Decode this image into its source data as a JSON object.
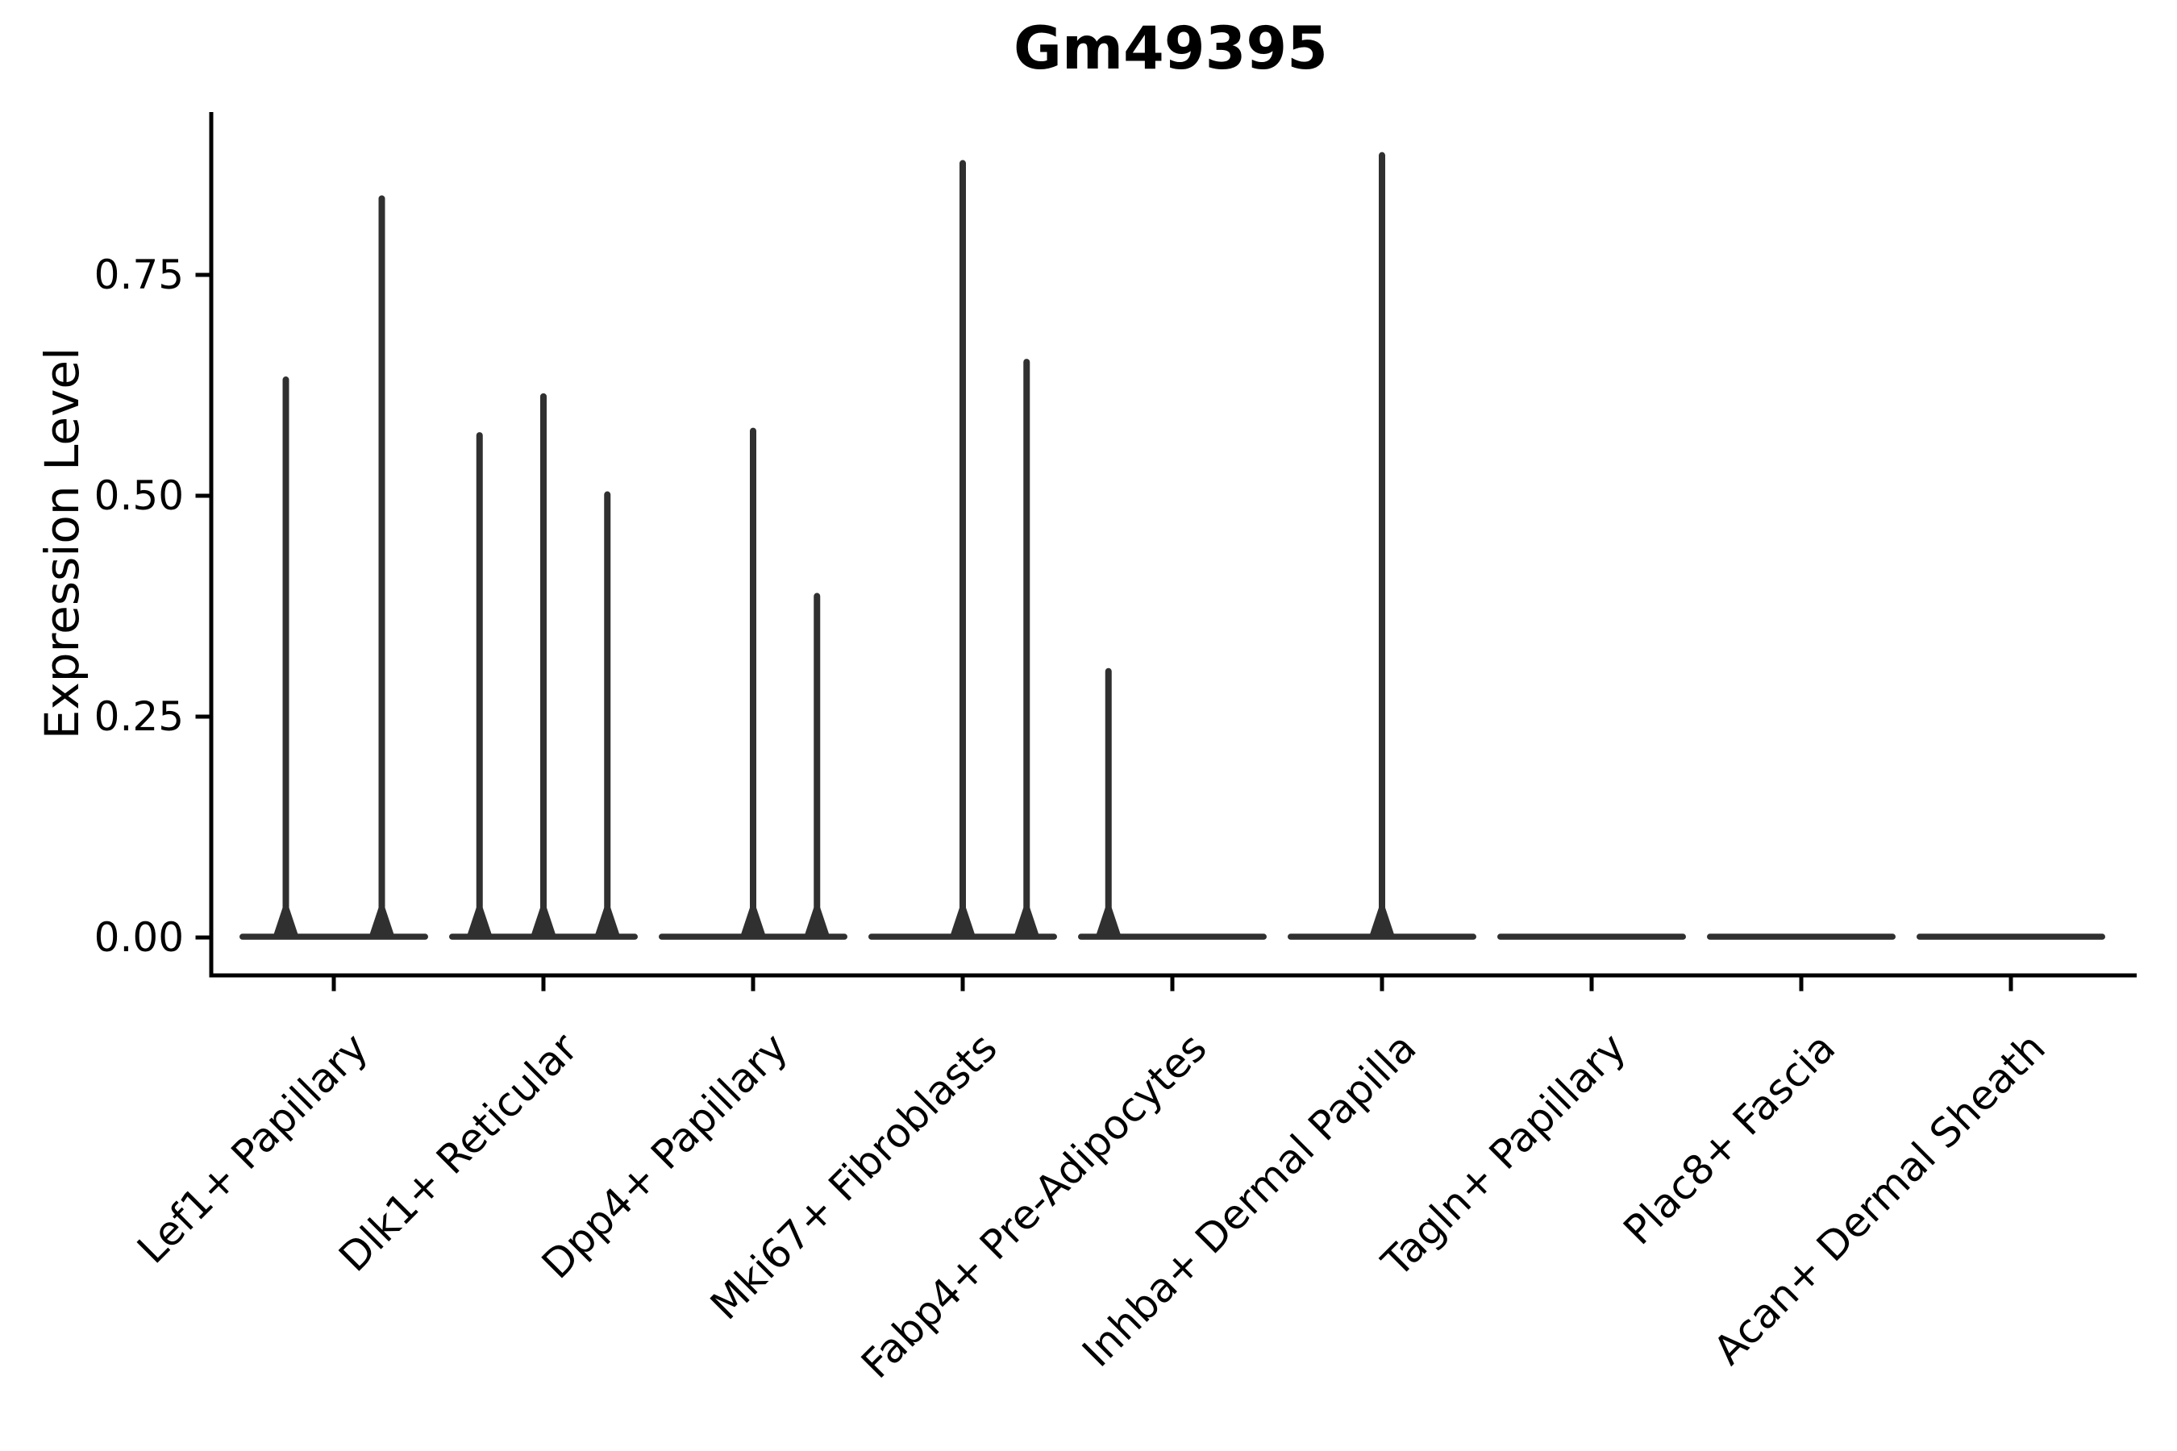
{
  "title": "Gm49395",
  "ylabel": "Expression Level",
  "colors": {
    "violin": "#303030",
    "axis": "#000000",
    "text": "#000000",
    "background": "#ffffff"
  },
  "chart_data": {
    "type": "violin",
    "title": "Gm49395",
    "xlabel": "",
    "ylabel": "Expression Level",
    "ylim": [
      0,
      0.93
    ],
    "yticks": [
      0.0,
      0.25,
      0.5,
      0.75
    ],
    "ytick_labels": [
      "0.00",
      "0.25",
      "0.50",
      "0.75"
    ],
    "grid": false,
    "legend": false,
    "x_tick_rotation_deg": 45,
    "categories": [
      "Lef1+ Papillary",
      "Dlk1+ Reticular",
      "Dpp4+ Papillary",
      "Mki67+ Fibroblasts",
      "Fabp4+ Pre-Adipocytes",
      "Inhba+ Dermal Papilla",
      "Tagln+ Papillary",
      "Plac8+ Fascia",
      "Acan+ Dermal Sheath"
    ],
    "groups": [
      {
        "label": "Lef1+ Papillary",
        "violins": [
          {
            "offset_frac": -0.25,
            "peak": 0.635
          },
          {
            "offset_frac": 0.25,
            "peak": 0.84
          }
        ]
      },
      {
        "label": "Dlk1+ Reticular",
        "violins": [
          {
            "offset_frac": -0.333,
            "peak": 0.572
          },
          {
            "offset_frac": 0,
            "peak": 0.616
          },
          {
            "offset_frac": 0.333,
            "peak": 0.505
          }
        ]
      },
      {
        "label": "Dpp4+ Papillary",
        "violins": [
          {
            "offset_frac": 0,
            "peak": 0.577
          },
          {
            "offset_frac": 0.333,
            "peak": 0.39
          }
        ]
      },
      {
        "label": "Mki67+ Fibroblasts",
        "violins": [
          {
            "offset_frac": 0,
            "peak": 0.88
          },
          {
            "offset_frac": 0.333,
            "peak": 0.655
          }
        ]
      },
      {
        "label": "Fabp4+ Pre-Adipocytes",
        "violins": [
          {
            "offset_frac": -0.333,
            "peak": 0.305
          }
        ]
      },
      {
        "label": "Inhba+ Dermal Papilla",
        "violins": [
          {
            "offset_frac": 0,
            "peak": 0.889
          }
        ]
      },
      {
        "label": "Tagln+ Papillary",
        "violins": []
      },
      {
        "label": "Plac8+ Fascia",
        "violins": []
      },
      {
        "label": "Acan+ Dermal Sheath",
        "violins": []
      }
    ],
    "note": "All groups show a flat density bar at expression 0; thin spikes mark sub-violin maxima."
  }
}
